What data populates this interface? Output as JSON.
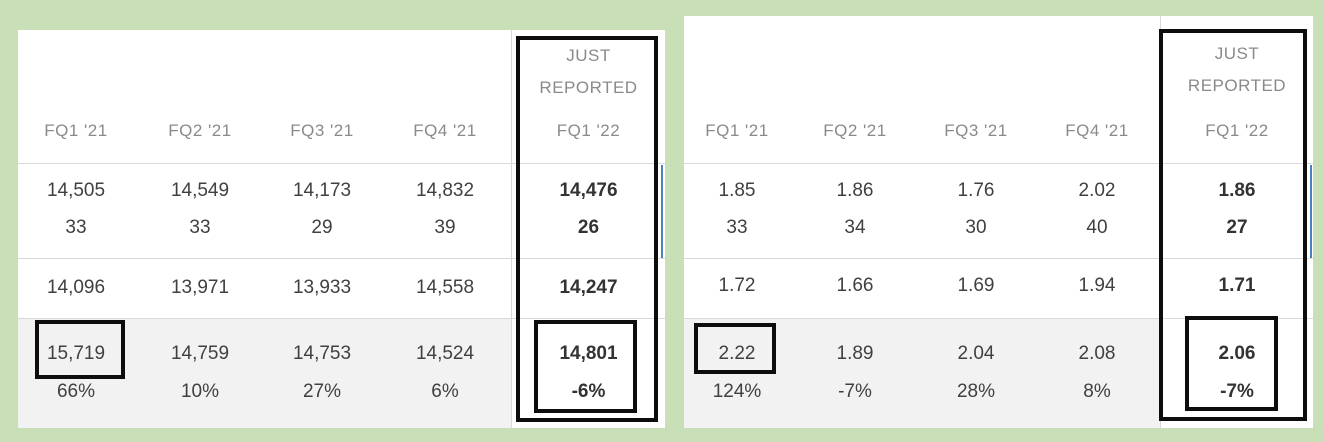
{
  "left_panel": {
    "columns": [
      {
        "header": "FQ1 '21",
        "row1a": "14,505",
        "row1b": "33",
        "row2": "14,096",
        "row3a": "15,719",
        "row3b": "66%"
      },
      {
        "header": "FQ2 '21",
        "row1a": "14,549",
        "row1b": "33",
        "row2": "13,971",
        "row3a": "14,759",
        "row3b": "10%"
      },
      {
        "header": "FQ3 '21",
        "row1a": "14,173",
        "row1b": "29",
        "row2": "13,933",
        "row3a": "14,753",
        "row3b": "27%"
      },
      {
        "header": "FQ4 '21",
        "row1a": "14,832",
        "row1b": "39",
        "row2": "14,558",
        "row3a": "14,524",
        "row3b": "6%"
      }
    ],
    "reported": {
      "label1": "JUST",
      "label2": "REPORTED",
      "header": "FQ1 '22",
      "row1a": "14,476",
      "row1b": "26",
      "row2": "14,247",
      "row3a": "14,801",
      "row3b": "-6%"
    }
  },
  "right_panel": {
    "columns": [
      {
        "header": "FQ1 '21",
        "row1a": "1.85",
        "row1b": "33",
        "row2": "1.72",
        "row3a": "2.22",
        "row3b": "124%"
      },
      {
        "header": "FQ2 '21",
        "row1a": "1.86",
        "row1b": "34",
        "row2": "1.66",
        "row3a": "1.89",
        "row3b": "-7%"
      },
      {
        "header": "FQ3 '21",
        "row1a": "1.76",
        "row1b": "30",
        "row2": "1.69",
        "row3a": "2.04",
        "row3b": "28%"
      },
      {
        "header": "FQ4 '21",
        "row1a": "2.02",
        "row1b": "40",
        "row2": "1.94",
        "row3a": "2.08",
        "row3b": "8%"
      }
    ],
    "reported": {
      "label1": "JUST",
      "label2": "REPORTED",
      "header": "FQ1 '22",
      "row1a": "1.86",
      "row1b": "27",
      "row2": "1.71",
      "row3a": "2.06",
      "row3b": "-7%"
    }
  },
  "colors": {
    "background": "#c9dfb7",
    "panel": "#ffffff",
    "annotation_border": "#0d0d0d",
    "shaded_row": "#f2f2f2",
    "header_text": "#8a8a8a",
    "accent": "#4a7fc0"
  }
}
